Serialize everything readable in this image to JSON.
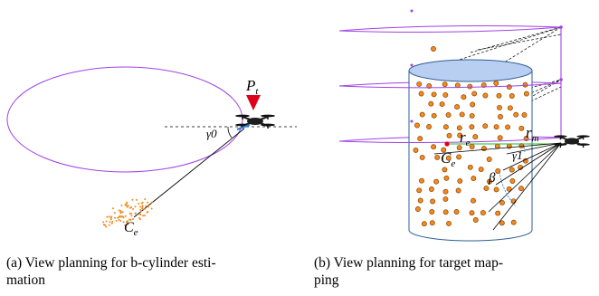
{
  "panel_a": {
    "labels": {
      "target_point": "P",
      "target_point_sub": "t",
      "gamma0": "γ0",
      "center": "C",
      "center_sub": "e"
    },
    "caption_line1": "(a) View planning for b-cylinder esti-",
    "caption_line2": "mation"
  },
  "panel_b": {
    "labels": {
      "r_e": "r",
      "r_e_sub": "e",
      "r_m": "r",
      "r_m_sub": "m",
      "gamma1": "γ1",
      "beta": "β",
      "center": "C",
      "center_sub": "e"
    },
    "caption_line1": "(b) View planning for target map-",
    "caption_line2": "ping"
  },
  "colors": {
    "orbit": "#a142e6",
    "dot_fill": "#f28a1e",
    "dot_stroke": "#8a4200",
    "cylinder_top": "#b9cff2",
    "cylinder_edge": "#2e5f96",
    "marker": "#e0001b",
    "radius_line": "#22bb22",
    "angle_arc": "#2a7fd6"
  },
  "icons": {
    "drone": "quadcopter-icon",
    "marker": "triangle-marker-icon"
  }
}
